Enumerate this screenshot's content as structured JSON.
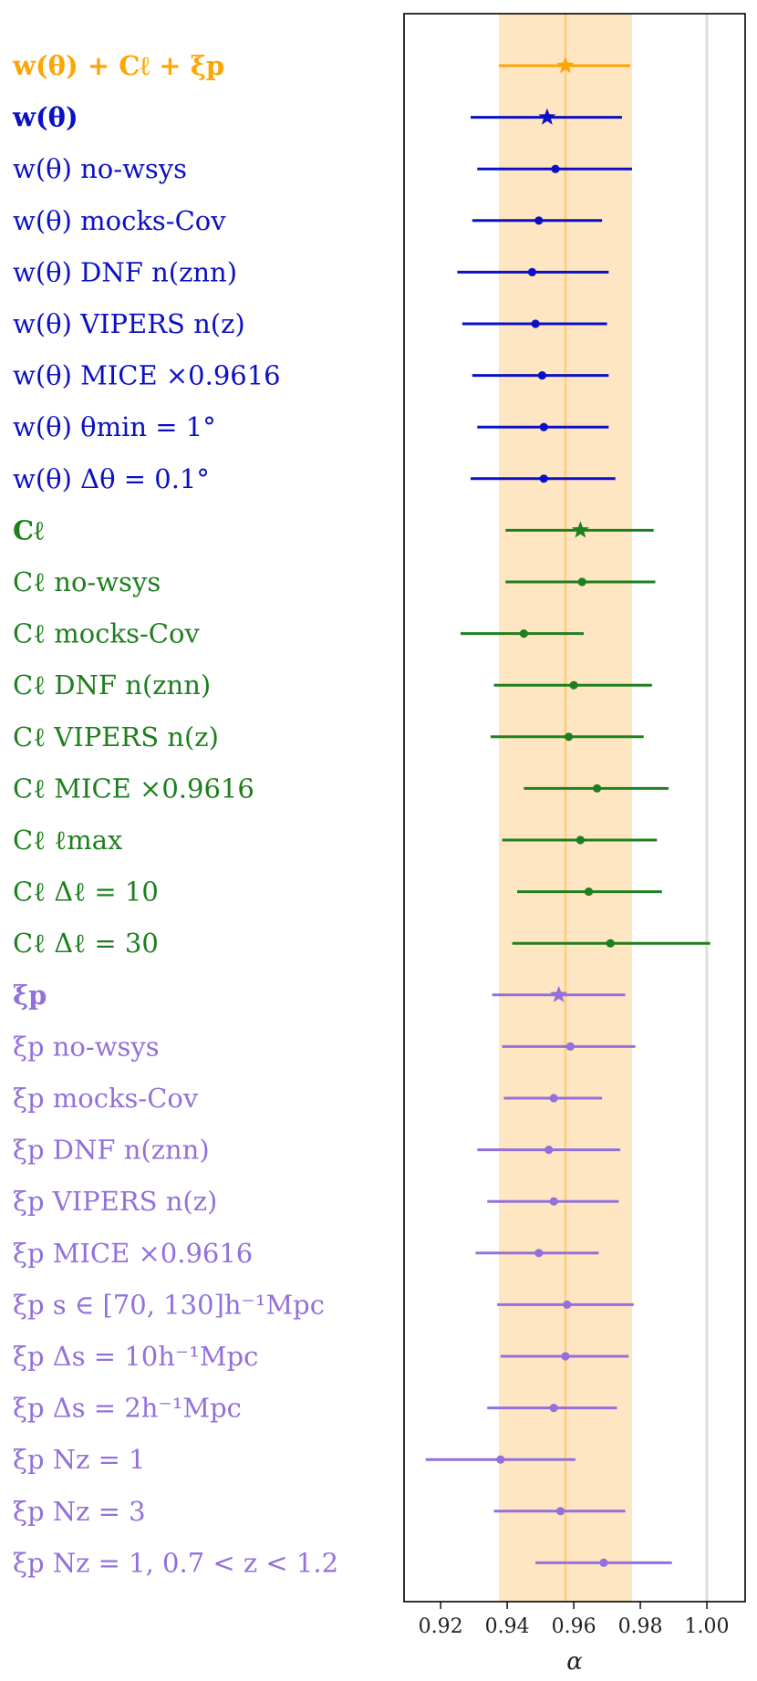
{
  "chart_data": {
    "type": "scatter",
    "xlabel": "α",
    "xlim": [
      0.909,
      1.0115
    ],
    "xticks": [
      0.92,
      0.94,
      0.96,
      0.98,
      1.0
    ],
    "xtick_labels": [
      "0.92",
      "0.94",
      "0.96",
      "0.98",
      "1.00"
    ],
    "reference_band": {
      "lower": 0.9375,
      "upper": 0.9775,
      "center": 0.9575,
      "color": "#ffe6c2",
      "center_color": "#fcd08a"
    },
    "reference_line": {
      "x": 1.0,
      "color": "#dddddd"
    },
    "colors": {
      "combined": "#ffa500",
      "wtheta": "#0b10c4",
      "cl": "#1e7f1e",
      "xip": "#9370db"
    },
    "rows": [
      {
        "label": "w(θ) + Cℓ + ξp",
        "bold": true,
        "group": "combined",
        "marker": "star",
        "value": 0.9575,
        "lower": 0.9375,
        "upper": 0.977
      },
      {
        "label": "w(θ)",
        "bold": true,
        "group": "wtheta",
        "marker": "star",
        "value": 0.952,
        "lower": 0.929,
        "upper": 0.9745
      },
      {
        "label": "w(θ) no-wsys",
        "group": "wtheta",
        "marker": "dot",
        "value": 0.9545,
        "lower": 0.931,
        "upper": 0.9775
      },
      {
        "label": "w(θ) mocks-Cov",
        "group": "wtheta",
        "marker": "dot",
        "value": 0.9495,
        "lower": 0.9295,
        "upper": 0.9685
      },
      {
        "label": "w(θ) DNF n(znn)",
        "group": "wtheta",
        "marker": "dot",
        "value": 0.9475,
        "lower": 0.925,
        "upper": 0.9705
      },
      {
        "label": "w(θ) VIPERS n(z)",
        "group": "wtheta",
        "marker": "dot",
        "value": 0.9485,
        "lower": 0.9265,
        "upper": 0.97
      },
      {
        "label": "w(θ) MICE ×0.9616",
        "group": "wtheta",
        "marker": "dot",
        "value": 0.9505,
        "lower": 0.9295,
        "upper": 0.9705
      },
      {
        "label": "w(θ) θmin = 1°",
        "group": "wtheta",
        "marker": "dot",
        "value": 0.951,
        "lower": 0.931,
        "upper": 0.9705
      },
      {
        "label": "w(θ) Δθ = 0.1°",
        "group": "wtheta",
        "marker": "dot",
        "value": 0.951,
        "lower": 0.929,
        "upper": 0.9725
      },
      {
        "label": "Cℓ",
        "bold": true,
        "group": "cl",
        "marker": "star",
        "value": 0.962,
        "lower": 0.9395,
        "upper": 0.984
      },
      {
        "label": "Cℓ no-wsys",
        "group": "cl",
        "marker": "dot",
        "value": 0.9625,
        "lower": 0.9395,
        "upper": 0.9845
      },
      {
        "label": "Cℓ mocks-Cov",
        "group": "cl",
        "marker": "dot",
        "value": 0.945,
        "lower": 0.926,
        "upper": 0.963
      },
      {
        "label": "Cℓ DNF n(znn)",
        "group": "cl",
        "marker": "dot",
        "value": 0.96,
        "lower": 0.936,
        "upper": 0.9835
      },
      {
        "label": "Cℓ VIPERS n(z)",
        "group": "cl",
        "marker": "dot",
        "value": 0.9585,
        "lower": 0.935,
        "upper": 0.981
      },
      {
        "label": "Cℓ MICE ×0.9616",
        "group": "cl",
        "marker": "dot",
        "value": 0.967,
        "lower": 0.945,
        "upper": 0.9885
      },
      {
        "label": "Cℓ ℓmax",
        "group": "cl",
        "marker": "dot",
        "value": 0.962,
        "lower": 0.9385,
        "upper": 0.985
      },
      {
        "label": "Cℓ Δℓ = 10",
        "group": "cl",
        "marker": "dot",
        "value": 0.9645,
        "lower": 0.943,
        "upper": 0.9865
      },
      {
        "label": "Cℓ Δℓ = 30",
        "group": "cl",
        "marker": "dot",
        "value": 0.971,
        "lower": 0.9415,
        "upper": 1.001
      },
      {
        "label": "ξp",
        "bold": true,
        "group": "xip",
        "marker": "star",
        "value": 0.9555,
        "lower": 0.9355,
        "upper": 0.9755
      },
      {
        "label": "ξp no-wsys",
        "group": "xip",
        "marker": "dot",
        "value": 0.959,
        "lower": 0.9385,
        "upper": 0.9785
      },
      {
        "label": "ξp mocks-Cov",
        "group": "xip",
        "marker": "dot",
        "value": 0.954,
        "lower": 0.939,
        "upper": 0.9685
      },
      {
        "label": "ξp DNF n(znn)",
        "group": "xip",
        "marker": "dot",
        "value": 0.9525,
        "lower": 0.931,
        "upper": 0.974
      },
      {
        "label": "ξp VIPERS n(z)",
        "group": "xip",
        "marker": "dot",
        "value": 0.954,
        "lower": 0.934,
        "upper": 0.9735
      },
      {
        "label": "ξp MICE ×0.9616",
        "group": "xip",
        "marker": "dot",
        "value": 0.9495,
        "lower": 0.9305,
        "upper": 0.9675
      },
      {
        "label": "ξp s ∈ [70, 130]h⁻¹Mpc",
        "group": "xip",
        "marker": "dot",
        "value": 0.958,
        "lower": 0.937,
        "upper": 0.978
      },
      {
        "label": "ξp Δs = 10h⁻¹Mpc",
        "group": "xip",
        "marker": "dot",
        "value": 0.9575,
        "lower": 0.938,
        "upper": 0.9765
      },
      {
        "label": "ξp Δs = 2h⁻¹Mpc",
        "group": "xip",
        "marker": "dot",
        "value": 0.954,
        "lower": 0.934,
        "upper": 0.973
      },
      {
        "label": "ξp Nz = 1",
        "group": "xip",
        "marker": "dot",
        "value": 0.938,
        "lower": 0.9155,
        "upper": 0.9605
      },
      {
        "label": "ξp Nz = 3",
        "group": "xip",
        "marker": "dot",
        "value": 0.956,
        "lower": 0.936,
        "upper": 0.9755
      },
      {
        "label": "ξp Nz = 1, 0.7 < z < 1.2",
        "group": "xip",
        "marker": "dot",
        "value": 0.969,
        "lower": 0.9485,
        "upper": 0.9895
      }
    ]
  }
}
